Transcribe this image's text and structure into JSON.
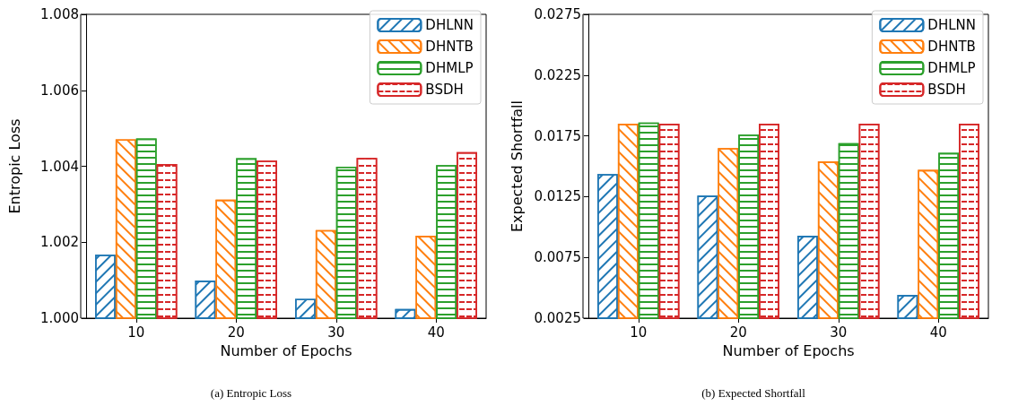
{
  "chart_data": [
    {
      "type": "bar",
      "categories": [
        "10",
        "20",
        "30",
        "40"
      ],
      "xlabel": "Number of Epochs",
      "ylabel": "Entropic Loss",
      "series": [
        {
          "name": "DHLNN",
          "color": "#1f77b4",
          "values": [
            1.00167,
            1.00099,
            1.00051,
            1.00024
          ]
        },
        {
          "name": "DHNTB",
          "color": "#ff7f0e",
          "values": [
            1.00471,
            1.00312,
            1.00232,
            1.00217
          ]
        },
        {
          "name": "DHMLP",
          "color": "#2ca02c",
          "values": [
            1.00473,
            1.00421,
            1.00399,
            1.00403
          ]
        },
        {
          "name": "BSDH",
          "color": "#d62728",
          "values": [
            1.00406,
            1.00415,
            1.00422,
            1.00437
          ]
        }
      ],
      "ylim": [
        1.0,
        1.008
      ],
      "yticks": [
        {
          "value": 1.0,
          "label": "1.000"
        },
        {
          "value": 1.002,
          "label": "1.002"
        },
        {
          "value": 1.004,
          "label": "1.004"
        },
        {
          "value": 1.006,
          "label": "1.006"
        },
        {
          "value": 1.008,
          "label": "1.008"
        }
      ],
      "legend": "top right",
      "grid": false,
      "annotations": [
        "(a) Entropic Loss"
      ]
    },
    {
      "type": "bar",
      "categories": [
        "10",
        "20",
        "30",
        "40"
      ],
      "xlabel": "Number of Epochs",
      "ylabel": "Expected Shortfall",
      "series": [
        {
          "name": "DHLNN",
          "color": "#1f77b4",
          "values": [
            0.01436,
            0.01258,
            0.00928,
            0.00441
          ]
        },
        {
          "name": "DHNTB",
          "color": "#ff7f0e",
          "values": [
            0.0185,
            0.0165,
            0.0154,
            0.0147
          ]
        },
        {
          "name": "DHMLP",
          "color": "#2ca02c",
          "values": [
            0.0186,
            0.0176,
            0.0169,
            0.0161
          ]
        },
        {
          "name": "BSDH",
          "color": "#d62728",
          "values": [
            0.0185,
            0.0185,
            0.0185,
            0.0185
          ]
        }
      ],
      "ylim": [
        0.0025,
        0.0275
      ],
      "yticks": [
        0.0025,
        0.0075,
        0.0125,
        0.0175,
        0.0225,
        0.0275
      ],
      "legend": "top right",
      "grid": false,
      "annotations": [
        "(b) Expected Shortfall"
      ]
    }
  ]
}
